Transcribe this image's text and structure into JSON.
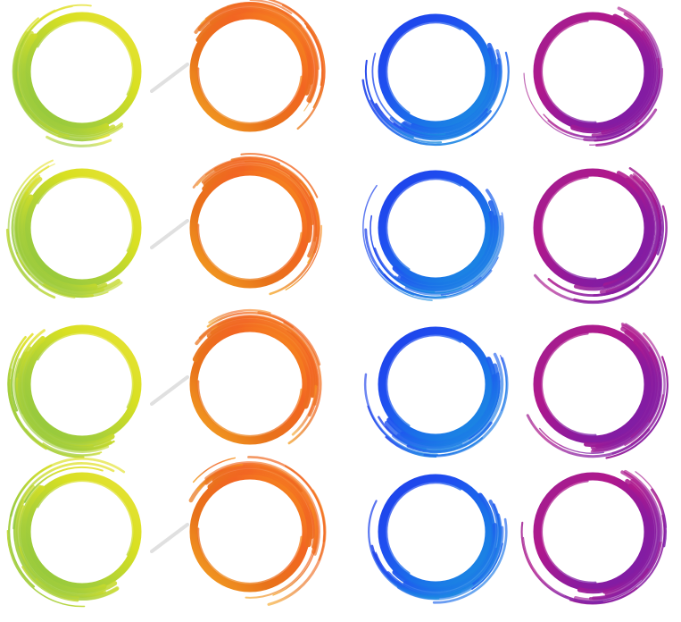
{
  "palette": {
    "green_yellow": {
      "stops": [
        "#8cc63f",
        "#a8cf3a",
        "#d9e021",
        "#e8e23a"
      ]
    },
    "orange": {
      "stops": [
        "#f7941d",
        "#f26522",
        "#e8731a",
        "#f5a623"
      ]
    },
    "blue": {
      "stops": [
        "#1e3fe8",
        "#1f4ff0",
        "#1a73e8",
        "#1c8fe0"
      ]
    },
    "purple": {
      "stops": [
        "#9e1f91",
        "#b0188c",
        "#8b1a9e",
        "#7a1fa8"
      ]
    },
    "connector": "#d9d9d9"
  },
  "rows": [
    {
      "rings": [
        "green_yellow",
        "orange",
        "blue",
        "purple"
      ]
    },
    {
      "rings": [
        "green_yellow",
        "orange",
        "blue",
        "purple"
      ]
    },
    {
      "rings": [
        "green_yellow",
        "orange",
        "blue",
        "purple"
      ]
    },
    {
      "rings": [
        "green_yellow",
        "orange",
        "blue",
        "purple"
      ]
    }
  ]
}
